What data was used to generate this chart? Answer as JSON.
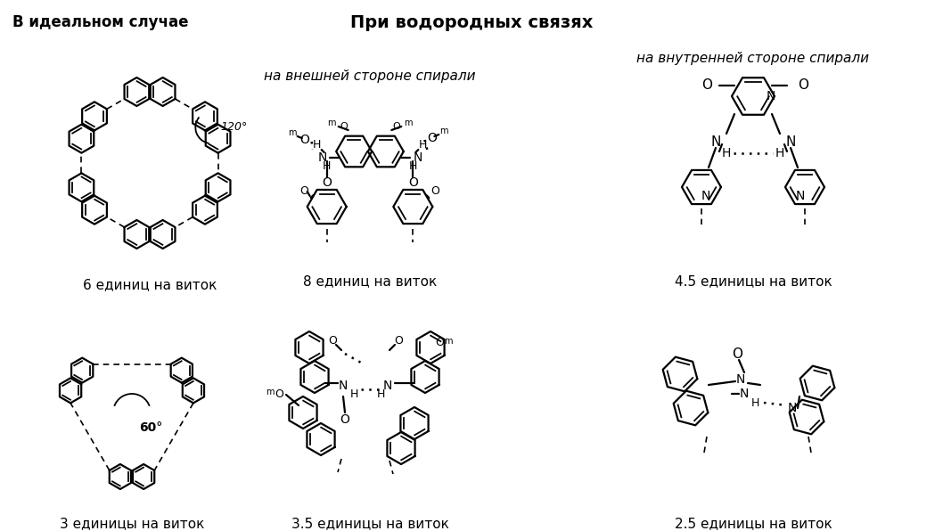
{
  "title_center": "При водородных связях",
  "label_top_left": "В идеальном случае",
  "label_top_mid_italic": "на внешней стороне спирали",
  "label_top_right_italic": "на внутренней стороне спирали",
  "label_6": "6 единиц на виток",
  "label_3": "3 единицы на виток",
  "label_8": "8 единиц на виток",
  "label_35": "3.5 единицы на виток",
  "label_45": "4.5 единицы на виток",
  "label_25": "2.5 единицы на виток",
  "bg_color": "#ffffff",
  "text_color": "#000000"
}
